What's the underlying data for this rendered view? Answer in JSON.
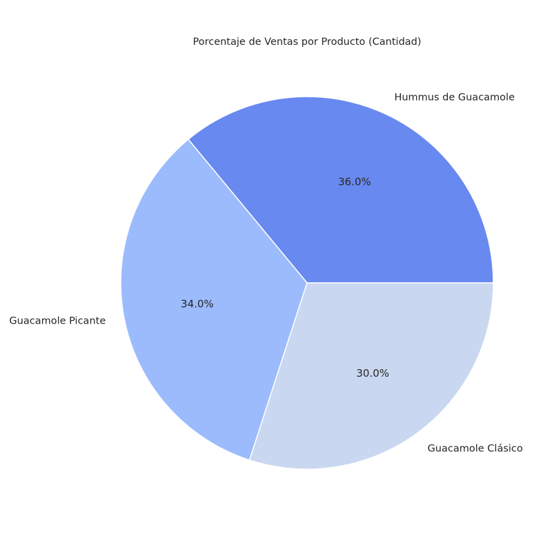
{
  "chart_data": {
    "type": "pie",
    "title": "Porcentaje de Ventas por Producto (Cantidad)",
    "start_angle_deg": 0,
    "direction": "counterclockwise",
    "slices": [
      {
        "label": "Hummus de Guacamole",
        "value": 36.0,
        "pct_label": "36.0%",
        "color": "#6889ef"
      },
      {
        "label": "Guacamole Picante",
        "value": 34.0,
        "pct_label": "34.0%",
        "color": "#9bbbfd"
      },
      {
        "label": "Guacamole Clásico",
        "value": 30.0,
        "pct_label": "30.0%",
        "color": "#c9d7f0"
      }
    ],
    "edge_color": "#ffffff"
  }
}
